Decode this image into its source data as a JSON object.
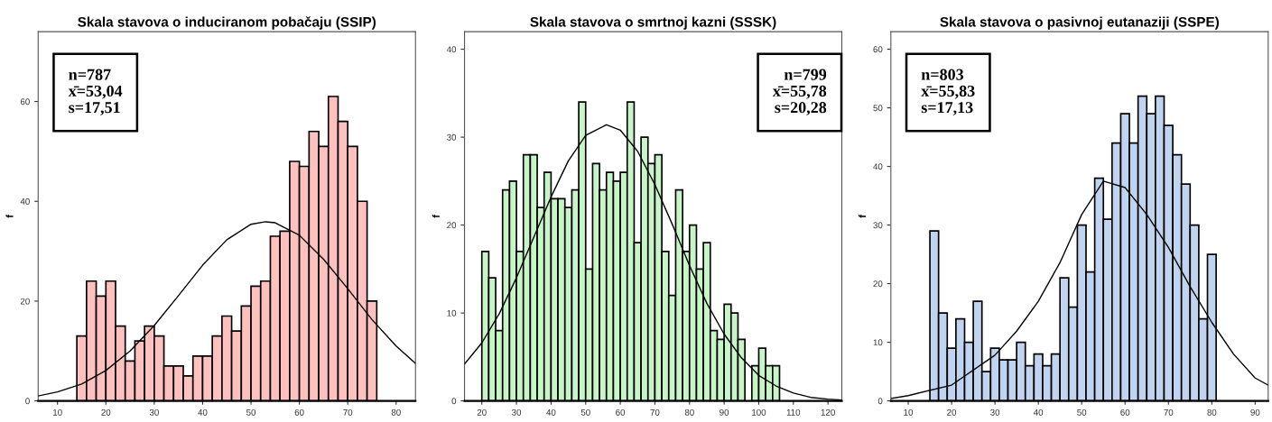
{
  "chart_data": [
    {
      "type": "histogram",
      "title": "Skala stavova o induciranom pobačaju (SSIP)",
      "ylabel": "f",
      "color": "#ffc0c0",
      "bins": [
        14,
        16,
        18,
        20,
        22,
        24,
        26,
        28,
        30,
        32,
        34,
        36,
        38,
        40,
        42,
        44,
        46,
        48,
        50,
        52,
        54,
        56,
        58,
        60,
        62,
        64,
        66,
        68,
        70,
        72,
        74,
        76
      ],
      "values": [
        13,
        24,
        21,
        24,
        15,
        8,
        12,
        15,
        13,
        7,
        7,
        5,
        9,
        9,
        13,
        17,
        14,
        19,
        23,
        24,
        33,
        34,
        48,
        47,
        54,
        51,
        61,
        56,
        51,
        40,
        20
      ],
      "series": [
        {
          "type": "line",
          "color": "#000000",
          "x": [
            6,
            10,
            15,
            20,
            25,
            30,
            35,
            40,
            45,
            50,
            53,
            55,
            60,
            65,
            70,
            75,
            80,
            84
          ],
          "values": [
            1.0,
            1.8,
            3.4,
            6.1,
            10.0,
            15.1,
            21.1,
            27.2,
            32.3,
            35.4,
            35.9,
            35.7,
            33.2,
            28.4,
            22.5,
            16.3,
            11.0,
            7.5
          ]
        }
      ],
      "annotations": [
        "n=787",
        "x̄=53,04",
        "s=17,51"
      ],
      "xlim": [
        6,
        84
      ],
      "xticks": [
        10,
        20,
        30,
        40,
        50,
        60,
        70,
        80
      ],
      "ylim": [
        0,
        74
      ],
      "yticks": [
        0,
        20,
        40,
        60
      ]
    },
    {
      "type": "histogram",
      "title": "Skala stavova o smrtnoj kazni (SSSK)",
      "ylabel": "f",
      "color": "#c8f5c8",
      "bins": [
        20,
        22,
        24,
        26,
        28,
        30,
        32,
        34,
        36,
        38,
        40,
        42,
        44,
        46,
        48,
        50,
        52,
        54,
        56,
        58,
        60,
        62,
        64,
        66,
        68,
        70,
        72,
        74,
        76,
        78,
        80,
        82,
        84,
        86,
        88,
        90,
        92,
        94,
        96,
        98,
        100,
        102,
        104,
        106
      ],
      "values": [
        17,
        14,
        8,
        24,
        25,
        17,
        28,
        28,
        22,
        26,
        23,
        23,
        22,
        24,
        34,
        15,
        27,
        24,
        26,
        25,
        26,
        34,
        18,
        30,
        27,
        28,
        17,
        12,
        24,
        17,
        20,
        15,
        18,
        8,
        7,
        11,
        10,
        7,
        0,
        4,
        6,
        4,
        4
      ],
      "series": [
        {
          "type": "line",
          "color": "#000000",
          "x": [
            15,
            20,
            25,
            30,
            35,
            40,
            45,
            50,
            56,
            60,
            65,
            70,
            75,
            80,
            85,
            90,
            95,
            100,
            105,
            110,
            115,
            120,
            124
          ],
          "values": [
            4.2,
            6.6,
            9.9,
            14.0,
            18.6,
            23.2,
            27.3,
            30.2,
            31.4,
            30.8,
            28.4,
            24.6,
            20.1,
            15.4,
            11.1,
            7.6,
            4.9,
            2.9,
            1.7,
            0.9,
            0.4,
            0.2,
            0.1
          ]
        }
      ],
      "annotations": [
        "n=799",
        "x̄=55,78",
        "s=20,28"
      ],
      "xlim": [
        15,
        124
      ],
      "xticks": [
        20,
        30,
        40,
        50,
        60,
        70,
        80,
        90,
        100,
        110,
        120
      ],
      "ylim": [
        0,
        42
      ],
      "yticks": [
        0,
        10,
        20,
        30,
        40
      ]
    },
    {
      "type": "histogram",
      "title": "Skala stavova o pasivnoj eutanaziji (SSPE)",
      "ylabel": "f",
      "color": "#c0d4f0",
      "bins": [
        15,
        17,
        19,
        21,
        23,
        25,
        27,
        29,
        31,
        33,
        35,
        37,
        39,
        41,
        43,
        45,
        47,
        49,
        51,
        53,
        55,
        57,
        59,
        61,
        63,
        65,
        67,
        69,
        71,
        73,
        75,
        77,
        79,
        81
      ],
      "values": [
        29,
        15,
        9,
        14,
        10,
        17,
        5,
        9,
        7,
        7,
        10,
        6,
        8,
        6,
        8,
        21,
        16,
        30,
        22,
        38,
        31,
        44,
        49,
        44,
        52,
        49,
        52,
        47,
        42,
        37,
        30,
        14,
        25
      ],
      "series": [
        {
          "type": "line",
          "color": "#000000",
          "x": [
            6,
            10,
            20,
            30,
            35,
            40,
            45,
            50,
            55,
            60,
            65,
            70,
            75,
            80,
            85,
            90,
            93
          ],
          "values": [
            0.4,
            0.9,
            2.7,
            7.8,
            11.9,
            17,
            23.6,
            31.8,
            37.5,
            36.4,
            31.8,
            26.2,
            19.5,
            13.4,
            8.0,
            3.9,
            2.7
          ]
        }
      ],
      "annotations": [
        "n=803",
        "x̄=55,83",
        "s=17,13"
      ],
      "xlim": [
        6,
        93
      ],
      "xticks": [
        10,
        20,
        30,
        40,
        50,
        60,
        70,
        80,
        90
      ],
      "ylim": [
        0,
        63
      ],
      "yticks": [
        0,
        10,
        20,
        30,
        40,
        50,
        60
      ]
    }
  ]
}
